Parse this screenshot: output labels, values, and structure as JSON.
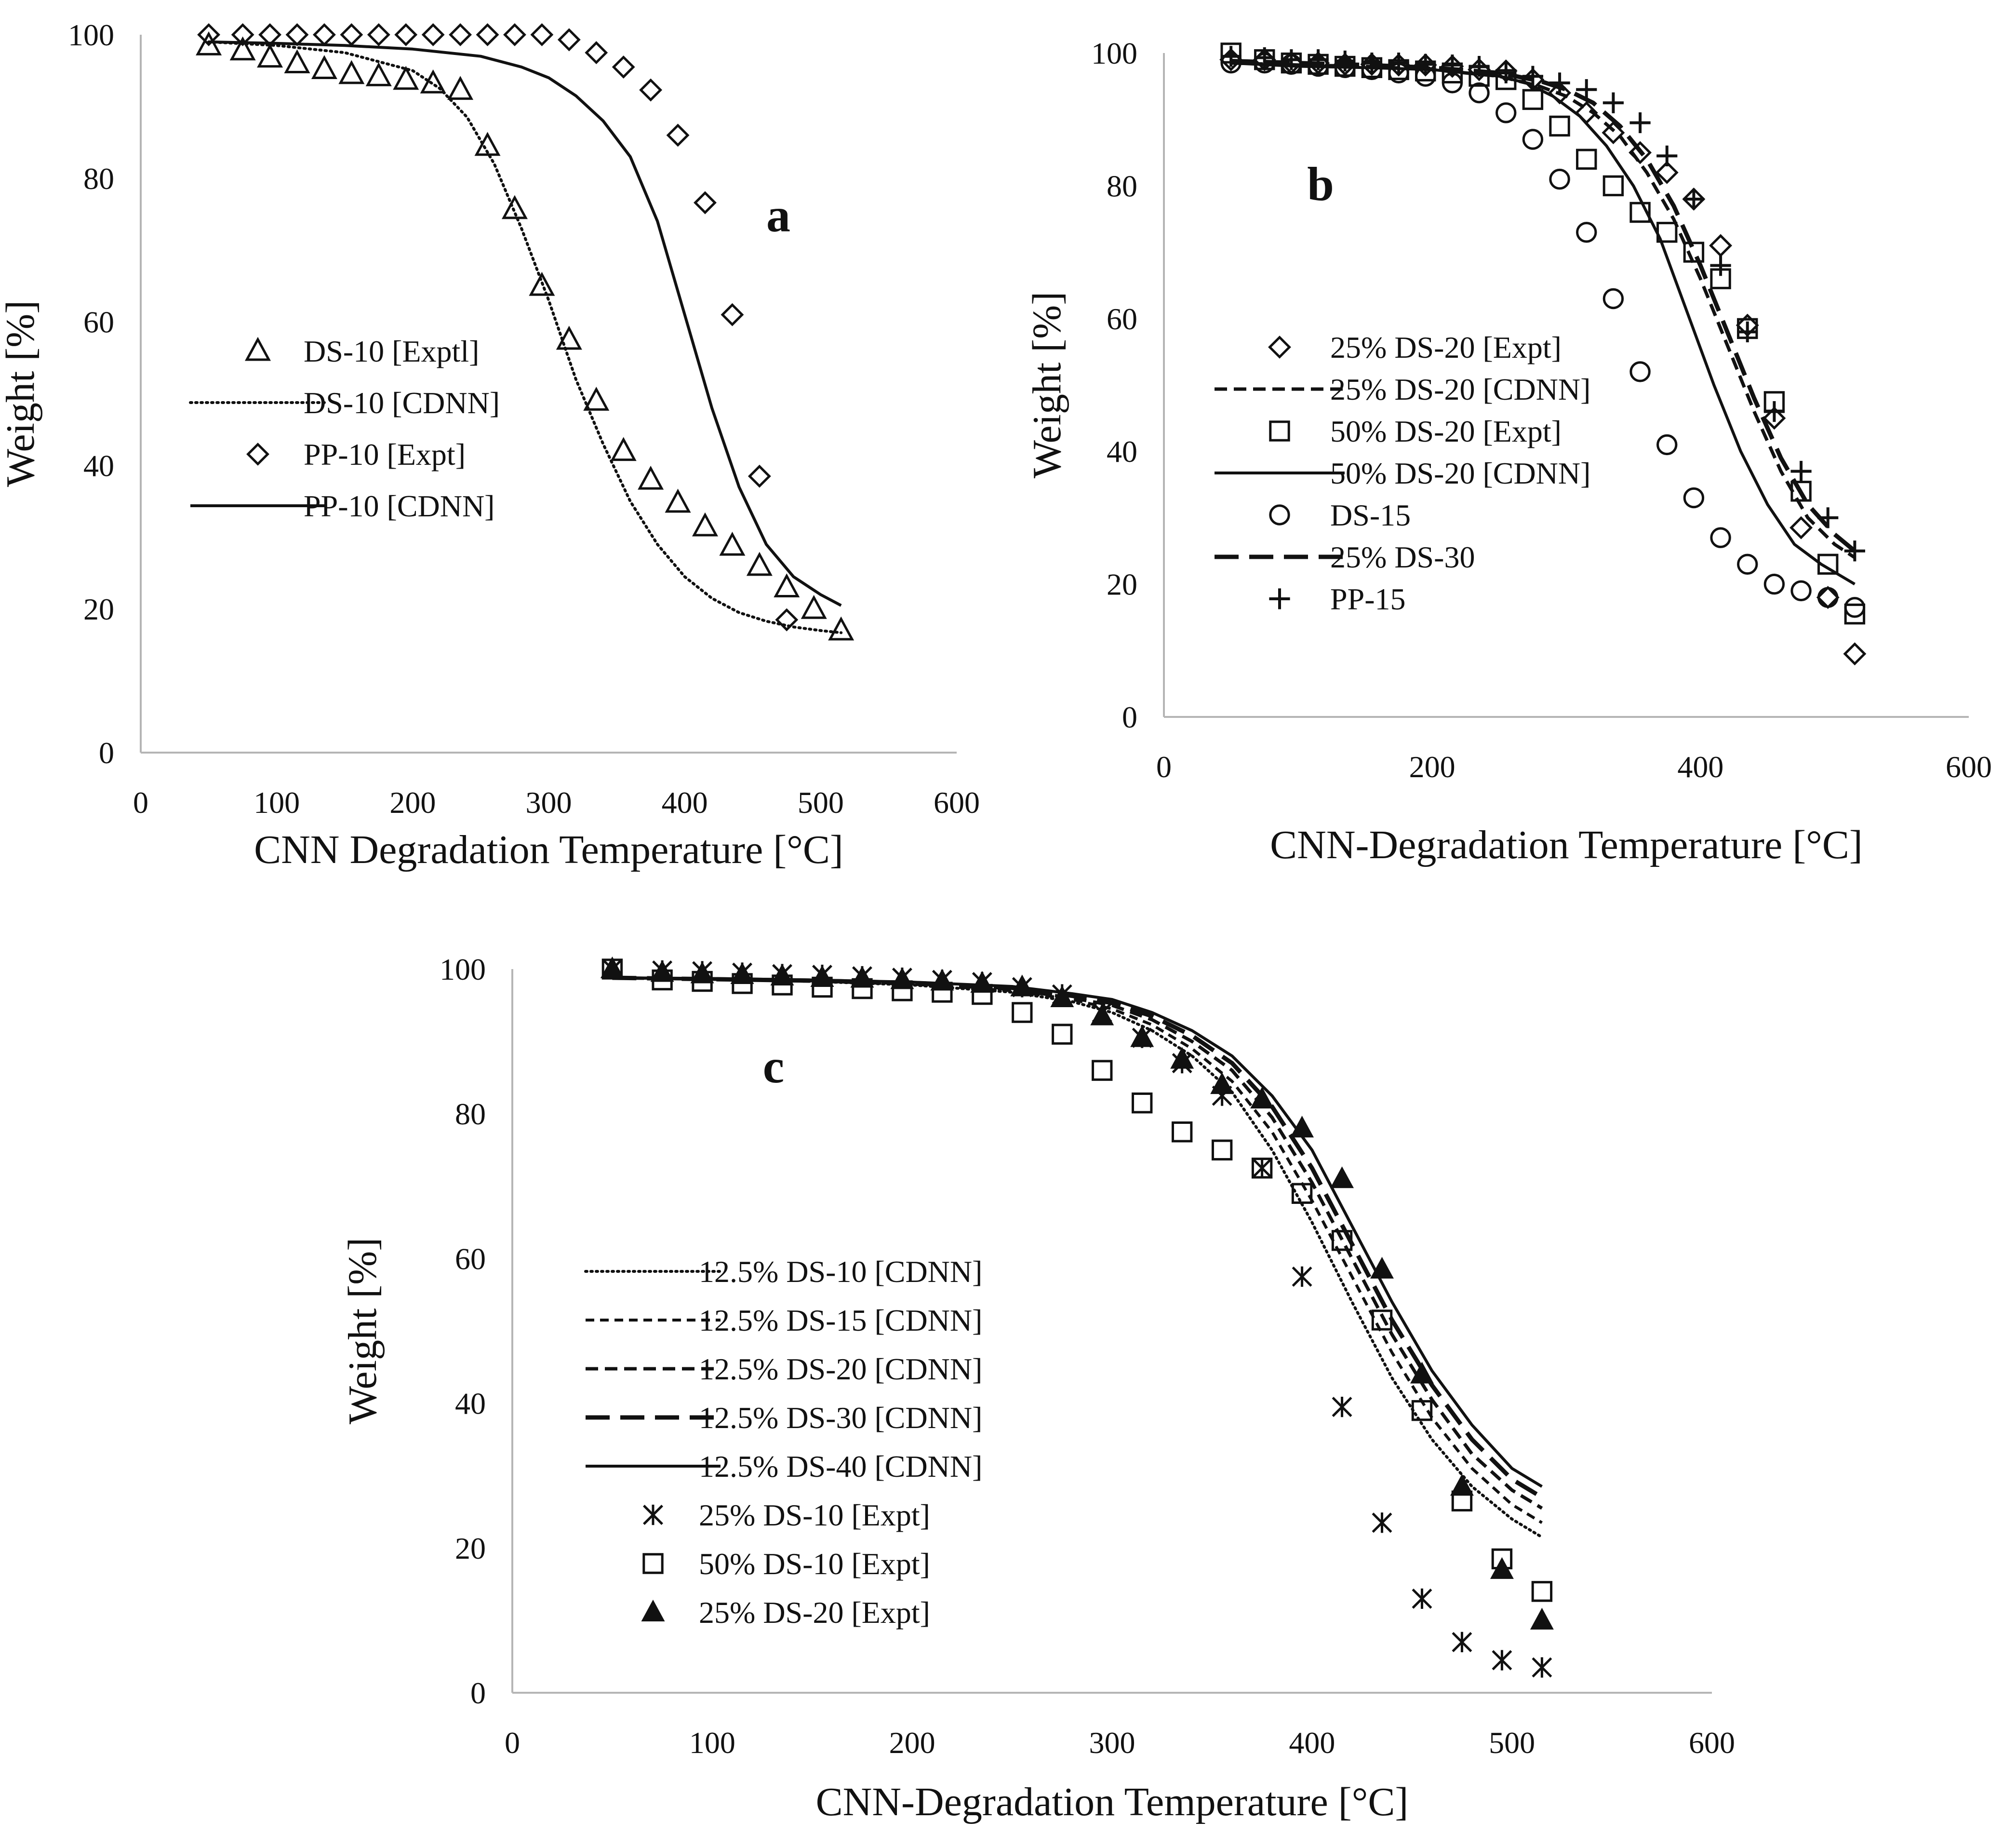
{
  "chart_data": [
    {
      "panel": "a",
      "type": "scatter",
      "xlabel": "CNN Degradation Temperature [°C]",
      "ylabel": "Weight [%]",
      "xlim": [
        0,
        600
      ],
      "ylim": [
        0,
        100
      ],
      "xticks": [
        0,
        100,
        200,
        300,
        400,
        500,
        600
      ],
      "yticks": [
        0,
        20,
        40,
        60,
        80,
        100
      ],
      "grid": false,
      "legend_position": "center-left",
      "series": [
        {
          "name": "DS-10 [Exptl]",
          "marker": "triangle-open",
          "line": "none",
          "x": [
            50,
            75,
            95,
            115,
            135,
            155,
            175,
            195,
            215,
            235,
            255,
            275,
            295,
            315,
            335,
            355,
            375,
            395,
            415,
            435,
            455,
            475,
            495,
            515
          ],
          "y": [
            98.5,
            97.8,
            96.8,
            96,
            95.2,
            94.5,
            94.2,
            93.7,
            93.2,
            92.3,
            84.5,
            75.7,
            65,
            57.5,
            49,
            42,
            38,
            34.8,
            31.5,
            28.8,
            26,
            23,
            20,
            17
          ]
        },
        {
          "name": "DS-10 [CDNN]",
          "marker": "none",
          "line": "dotted",
          "x": [
            50,
            100,
            150,
            200,
            220,
            240,
            260,
            280,
            300,
            320,
            340,
            360,
            380,
            400,
            420,
            440,
            460,
            480,
            500,
            515
          ],
          "y": [
            99,
            98.5,
            97.5,
            95,
            92.5,
            88.5,
            82,
            73,
            63,
            52,
            43,
            35,
            29,
            24.5,
            21.5,
            19.5,
            18.3,
            17.5,
            17,
            16.7
          ]
        },
        {
          "name": "PP-10 [Expt]",
          "marker": "diamond-open",
          "line": "none",
          "x": [
            50,
            75,
            95,
            115,
            135,
            155,
            175,
            195,
            215,
            235,
            255,
            275,
            295,
            315,
            335,
            355,
            375,
            395,
            415,
            435,
            455,
            475
          ],
          "y": [
            100,
            100,
            100,
            100,
            100,
            100,
            100,
            100,
            100,
            100,
            100,
            100,
            100,
            99.3,
            97.5,
            95.5,
            92.3,
            86,
            76.6,
            61,
            38.5,
            18.5
          ]
        },
        {
          "name": "PP-10 [CDNN]",
          "marker": "none",
          "line": "solid",
          "x": [
            50,
            100,
            150,
            200,
            250,
            280,
            300,
            320,
            340,
            360,
            380,
            400,
            420,
            440,
            460,
            480,
            500,
            515
          ],
          "y": [
            99,
            98.8,
            98.5,
            98,
            97,
            95.5,
            94,
            91.5,
            88,
            83,
            74,
            61,
            48,
            37,
            29,
            24.5,
            22,
            20.5
          ]
        }
      ]
    },
    {
      "panel": "b",
      "type": "scatter",
      "xlabel": "CNN-Degradation Temperature [°C]",
      "ylabel": "Weight [%]",
      "xlim": [
        0,
        600
      ],
      "ylim": [
        0,
        100
      ],
      "xticks": [
        0,
        200,
        400,
        600
      ],
      "yticks": [
        0,
        20,
        40,
        60,
        80,
        100
      ],
      "grid": false,
      "legend_position": "center-left",
      "series": [
        {
          "name": "25% DS-20 [Expt]",
          "marker": "diamond-open",
          "line": "none",
          "x": [
            50,
            75,
            95,
            115,
            135,
            155,
            175,
            195,
            215,
            235,
            255,
            275,
            295,
            315,
            335,
            355,
            375,
            395,
            415,
            435,
            455,
            475,
            495,
            515
          ],
          "y": [
            99,
            99,
            98.5,
            98.5,
            98.3,
            98.3,
            98.2,
            98.2,
            98,
            97.5,
            97.3,
            96,
            94,
            91,
            88,
            85,
            82,
            78,
            71,
            59,
            45,
            28.5,
            18,
            9.5
          ]
        },
        {
          "name": "25% DS-20 [CDNN]",
          "marker": "none",
          "line": "dashed",
          "x": [
            50,
            100,
            150,
            200,
            250,
            280,
            300,
            320,
            340,
            360,
            380,
            400,
            420,
            440,
            460,
            480,
            500,
            515
          ],
          "y": [
            98.5,
            98.2,
            98,
            97.5,
            96.5,
            95,
            93.5,
            91,
            87.5,
            82,
            75,
            66,
            56,
            46,
            37,
            30,
            26,
            24
          ]
        },
        {
          "name": "50% DS-20 [Expt]",
          "marker": "square-open",
          "line": "none",
          "x": [
            50,
            75,
            95,
            115,
            135,
            155,
            175,
            195,
            215,
            235,
            255,
            275,
            295,
            315,
            335,
            355,
            375,
            395,
            415,
            435,
            455,
            475,
            495,
            515
          ],
          "y": [
            100,
            99,
            98.5,
            98.3,
            98,
            97.8,
            97.5,
            97.3,
            97,
            96.5,
            96,
            93,
            89,
            84,
            80,
            76,
            73,
            70,
            66,
            58.5,
            47.5,
            34,
            23,
            15.5
          ]
        },
        {
          "name": "50% DS-20 [CDNN]",
          "marker": "none",
          "line": "solid",
          "x": [
            50,
            100,
            150,
            200,
            250,
            270,
            290,
            310,
            330,
            350,
            370,
            390,
            410,
            430,
            450,
            470,
            490,
            515
          ],
          "y": [
            98.5,
            98,
            97.8,
            97.5,
            96.5,
            95.5,
            93.5,
            90.5,
            86,
            80,
            72,
            61,
            50,
            40,
            32,
            26,
            23,
            20
          ]
        },
        {
          "name": "DS-15",
          "marker": "circle-open",
          "line": "none",
          "x": [
            50,
            75,
            95,
            115,
            135,
            155,
            175,
            195,
            215,
            235,
            255,
            275,
            295,
            315,
            335,
            355,
            375,
            395,
            415,
            435,
            455,
            475,
            495,
            515
          ],
          "y": [
            98.5,
            98.5,
            98.3,
            98,
            97.8,
            97.5,
            97,
            96.5,
            95.5,
            94,
            91,
            87,
            81,
            73,
            63,
            52,
            41,
            33,
            27,
            23,
            20,
            19,
            18,
            16.5
          ]
        },
        {
          "name": "25% DS-30",
          "marker": "none",
          "line": "long-dash",
          "x": [
            50,
            100,
            150,
            200,
            250,
            280,
            300,
            320,
            340,
            360,
            380,
            400,
            420,
            440,
            460,
            480,
            500,
            515
          ],
          "y": [
            98.8,
            98.5,
            98.2,
            97.8,
            97,
            95.8,
            94.5,
            92.5,
            89,
            84,
            77,
            68,
            58,
            48,
            39,
            32,
            27.5,
            25
          ]
        },
        {
          "name": "PP-15",
          "marker": "plus",
          "line": "none",
          "x": [
            50,
            75,
            95,
            115,
            135,
            155,
            175,
            195,
            215,
            235,
            255,
            275,
            295,
            315,
            335,
            355,
            375,
            395,
            415,
            435,
            455,
            475,
            495,
            515
          ],
          "y": [
            99.5,
            99.3,
            99,
            99,
            98.8,
            98.5,
            98.5,
            98.3,
            98.2,
            98,
            97,
            96.5,
            95.5,
            94.5,
            92.5,
            89.5,
            84.5,
            78,
            68,
            58,
            46,
            37,
            30,
            25
          ]
        }
      ]
    },
    {
      "panel": "c",
      "type": "scatter",
      "xlabel": "CNN-Degradation Temperature [°C]",
      "ylabel": "Weight [%]",
      "xlim": [
        0,
        600
      ],
      "ylim": [
        0,
        100
      ],
      "xticks": [
        0,
        100,
        200,
        300,
        400,
        500,
        600
      ],
      "yticks": [
        0,
        20,
        40,
        60,
        80,
        100
      ],
      "grid": false,
      "legend_position": "center-left",
      "series": [
        {
          "name": "12.5% DS-10 [CDNN]",
          "marker": "none",
          "line": "dotted",
          "x": [
            50,
            100,
            150,
            200,
            250,
            280,
            300,
            320,
            340,
            360,
            380,
            400,
            420,
            440,
            460,
            480,
            500,
            515
          ],
          "y": [
            98.8,
            98.6,
            98.3,
            97.8,
            96.8,
            95.5,
            94,
            91.5,
            88,
            83,
            75,
            65,
            54,
            43.5,
            35,
            28.5,
            24,
            21.5
          ]
        },
        {
          "name": "12.5% DS-15 [CDNN]",
          "marker": "none",
          "line": "short-dash",
          "x": [
            50,
            100,
            150,
            200,
            250,
            280,
            300,
            320,
            340,
            360,
            380,
            400,
            420,
            440,
            460,
            480,
            500,
            515
          ],
          "y": [
            98.8,
            98.6,
            98.3,
            97.9,
            97,
            95.8,
            94.5,
            92.3,
            89,
            84.5,
            77.5,
            68,
            57.5,
            47,
            38,
            31,
            26,
            23.5
          ]
        },
        {
          "name": "12.5% DS-20 [CDNN]",
          "marker": "none",
          "line": "dashed",
          "x": [
            50,
            100,
            150,
            200,
            250,
            280,
            300,
            320,
            340,
            360,
            380,
            400,
            420,
            440,
            460,
            480,
            500,
            515
          ],
          "y": [
            98.8,
            98.6,
            98.4,
            98,
            97.2,
            96,
            95,
            93,
            90,
            86,
            79.5,
            70.5,
            60,
            49.5,
            40.5,
            33,
            28,
            25.5
          ]
        },
        {
          "name": "12.5% DS-30 [CDNN]",
          "marker": "none",
          "line": "long-dash",
          "x": [
            50,
            100,
            150,
            200,
            250,
            280,
            300,
            320,
            340,
            360,
            380,
            400,
            420,
            440,
            460,
            480,
            500,
            515
          ],
          "y": [
            98.8,
            98.6,
            98.4,
            98.1,
            97.4,
            96.3,
            95.3,
            93.5,
            90.8,
            87,
            81,
            72.5,
            62,
            51.5,
            42.5,
            35,
            29.5,
            27
          ]
        },
        {
          "name": "12.5% DS-40 [CDNN]",
          "marker": "none",
          "line": "solid",
          "x": [
            50,
            100,
            150,
            200,
            250,
            280,
            300,
            320,
            340,
            360,
            380,
            400,
            420,
            440,
            460,
            480,
            500,
            515
          ],
          "y": [
            98.8,
            98.7,
            98.5,
            98.2,
            97.6,
            96.6,
            95.8,
            94,
            91.5,
            88,
            82.5,
            75,
            64.5,
            54,
            44.5,
            37,
            31,
            28.5
          ]
        },
        {
          "name": "25% DS-10 [Expt]",
          "marker": "star",
          "line": "none",
          "x": [
            50,
            75,
            95,
            115,
            135,
            155,
            175,
            195,
            215,
            235,
            255,
            275,
            295,
            315,
            335,
            355,
            375,
            395,
            415,
            435,
            455,
            475,
            495,
            515
          ],
          "y": [
            100,
            99.8,
            99.7,
            99.5,
            99.3,
            99.2,
            99,
            98.8,
            98.5,
            98.2,
            97.5,
            96.5,
            94,
            90.5,
            87,
            82.5,
            72.5,
            57.5,
            39.5,
            23.5,
            13,
            7,
            4.5,
            3.5
          ]
        },
        {
          "name": "50% DS-10 [Expt]",
          "marker": "square-open",
          "line": "none",
          "x": [
            50,
            75,
            95,
            115,
            135,
            155,
            175,
            195,
            215,
            235,
            255,
            275,
            295,
            315,
            335,
            355,
            375,
            395,
            415,
            435,
            455,
            475,
            495,
            515
          ],
          "y": [
            100,
            98.5,
            98.3,
            98,
            97.8,
            97.5,
            97.3,
            97,
            96.8,
            96.5,
            94,
            91,
            86,
            81.5,
            77.5,
            75,
            72.5,
            69,
            62.5,
            51.5,
            39,
            26.5,
            18.5,
            14
          ]
        },
        {
          "name": "25% DS-20 [Expt]",
          "marker": "triangle-filled",
          "line": "none",
          "x": [
            50,
            75,
            95,
            115,
            135,
            155,
            175,
            195,
            215,
            235,
            255,
            275,
            295,
            315,
            335,
            355,
            375,
            395,
            415,
            435,
            455,
            475,
            495,
            515
          ],
          "y": [
            100,
            99.5,
            99.3,
            99.2,
            99,
            98.8,
            98.7,
            98.5,
            98.3,
            98,
            97.5,
            96,
            93.5,
            90.5,
            87.5,
            84,
            82,
            78,
            71,
            58.5,
            44,
            28.5,
            17,
            10
          ]
        }
      ]
    }
  ],
  "panels": [
    {
      "id": "a",
      "label": "a"
    },
    {
      "id": "b",
      "label": "b"
    },
    {
      "id": "c",
      "label": "c"
    }
  ]
}
